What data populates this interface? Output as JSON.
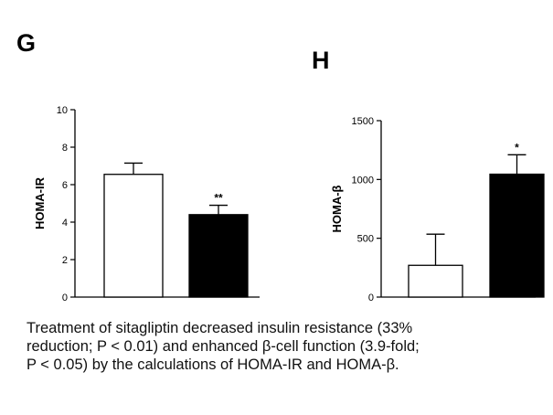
{
  "chart_data": [
    {
      "panel": "G",
      "type": "bar",
      "ylabel": "HOMA-IR",
      "ylim": [
        0,
        10
      ],
      "yticks": [
        0,
        2,
        4,
        6,
        8,
        10
      ],
      "grid": false,
      "categories": [
        "",
        ""
      ],
      "values": [
        6.55,
        4.4
      ],
      "errors": [
        0.6,
        0.5
      ],
      "fills": [
        "#ffffff",
        "#000000"
      ],
      "annotations": [
        "",
        "**"
      ]
    },
    {
      "panel": "H",
      "type": "bar",
      "ylabel": "HOMA-β",
      "ylim": [
        0,
        1500
      ],
      "yticks": [
        0,
        500,
        1000,
        1500
      ],
      "grid": false,
      "categories": [
        "",
        ""
      ],
      "values": [
        270,
        1045
      ],
      "errors": [
        265,
        165
      ],
      "fills": [
        "#ffffff",
        "#000000"
      ],
      "annotations": [
        "",
        "*"
      ]
    }
  ],
  "caption": {
    "lines": [
      "Treatment of sitagliptin decreased insulin resistance (33%",
      "reduction; P < 0.01) and enhanced β-cell function (3.9-fold;",
      "P < 0.05) by the calculations of HOMA-IR and HOMA-β."
    ]
  }
}
